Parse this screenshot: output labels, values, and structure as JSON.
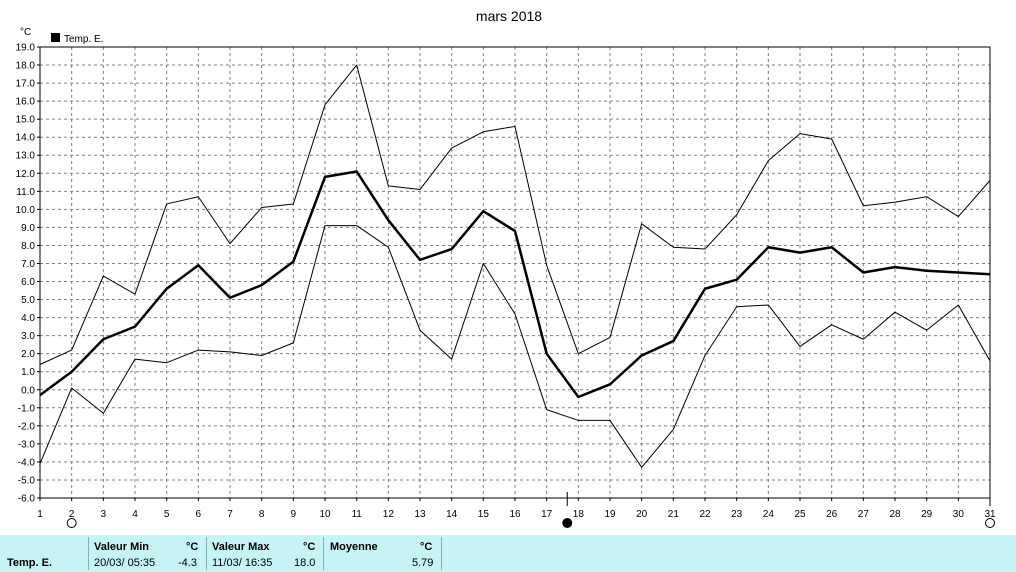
{
  "chart_data": {
    "type": "line",
    "title": "mars 2018",
    "yunit": "°C",
    "ylim": [
      -6,
      19
    ],
    "ytick_step": 1,
    "xlim": [
      1,
      31
    ],
    "x": [
      1,
      2,
      3,
      4,
      5,
      6,
      7,
      8,
      9,
      10,
      11,
      12,
      13,
      14,
      15,
      16,
      17,
      18,
      19,
      20,
      21,
      22,
      23,
      24,
      25,
      26,
      27,
      28,
      29,
      30,
      31
    ],
    "grid": true,
    "legend": "top-left",
    "legend_label": "Temp. E.",
    "series": [
      {
        "role": "max",
        "values": [
          1.4,
          2.2,
          6.3,
          5.3,
          10.3,
          10.7,
          8.1,
          10.1,
          10.3,
          15.8,
          18.0,
          11.3,
          11.1,
          13.4,
          14.3,
          14.6,
          6.9,
          2.0,
          2.9,
          9.2,
          7.9,
          7.8,
          9.7,
          12.7,
          14.2,
          13.9,
          10.2,
          10.4,
          10.7,
          9.6,
          11.6
        ],
        "stroke_width": 1
      },
      {
        "role": "mean",
        "values": [
          -0.3,
          1.0,
          2.8,
          3.5,
          5.6,
          6.9,
          5.1,
          5.8,
          7.1,
          11.8,
          12.1,
          9.4,
          7.2,
          7.8,
          9.9,
          8.8,
          2.0,
          -0.4,
          0.3,
          1.9,
          2.7,
          5.6,
          6.1,
          7.9,
          7.6,
          7.9,
          6.5,
          6.8,
          6.6,
          6.5,
          6.4
        ],
        "stroke_width": 2.5
      },
      {
        "role": "min",
        "values": [
          -4.1,
          0.1,
          -1.3,
          1.7,
          1.5,
          2.2,
          2.1,
          1.9,
          2.6,
          9.1,
          9.1,
          7.9,
          3.3,
          1.7,
          7.0,
          4.2,
          -1.1,
          -1.7,
          -1.7,
          -4.3,
          -2.2,
          1.9,
          4.6,
          4.7,
          2.4,
          3.6,
          2.8,
          4.3,
          3.3,
          4.7,
          1.6
        ]
      }
    ],
    "moon_markers": [
      {
        "x": 2,
        "phase": "full"
      },
      {
        "x": 17.65,
        "phase": "new"
      },
      {
        "x": 31,
        "phase": "full"
      }
    ],
    "quarter_markers": [
      17.65,
      31
    ]
  },
  "footer": {
    "series_label": "Temp. E.",
    "min_header": "Valeur Min",
    "min_unit": "°C",
    "min_when": "20/03/  05:35",
    "min_value": "-4.3",
    "max_header": "Valeur Max",
    "max_unit": "°C",
    "max_when": "11/03/  16:35",
    "max_value": "18.0",
    "mean_header": "Moyenne",
    "mean_unit": "°C",
    "mean_value": "5.79"
  },
  "colors": {
    "background": "#ffffff",
    "line": "#000000",
    "grid": "#808080",
    "footer_bg": "#c6f4f4"
  }
}
